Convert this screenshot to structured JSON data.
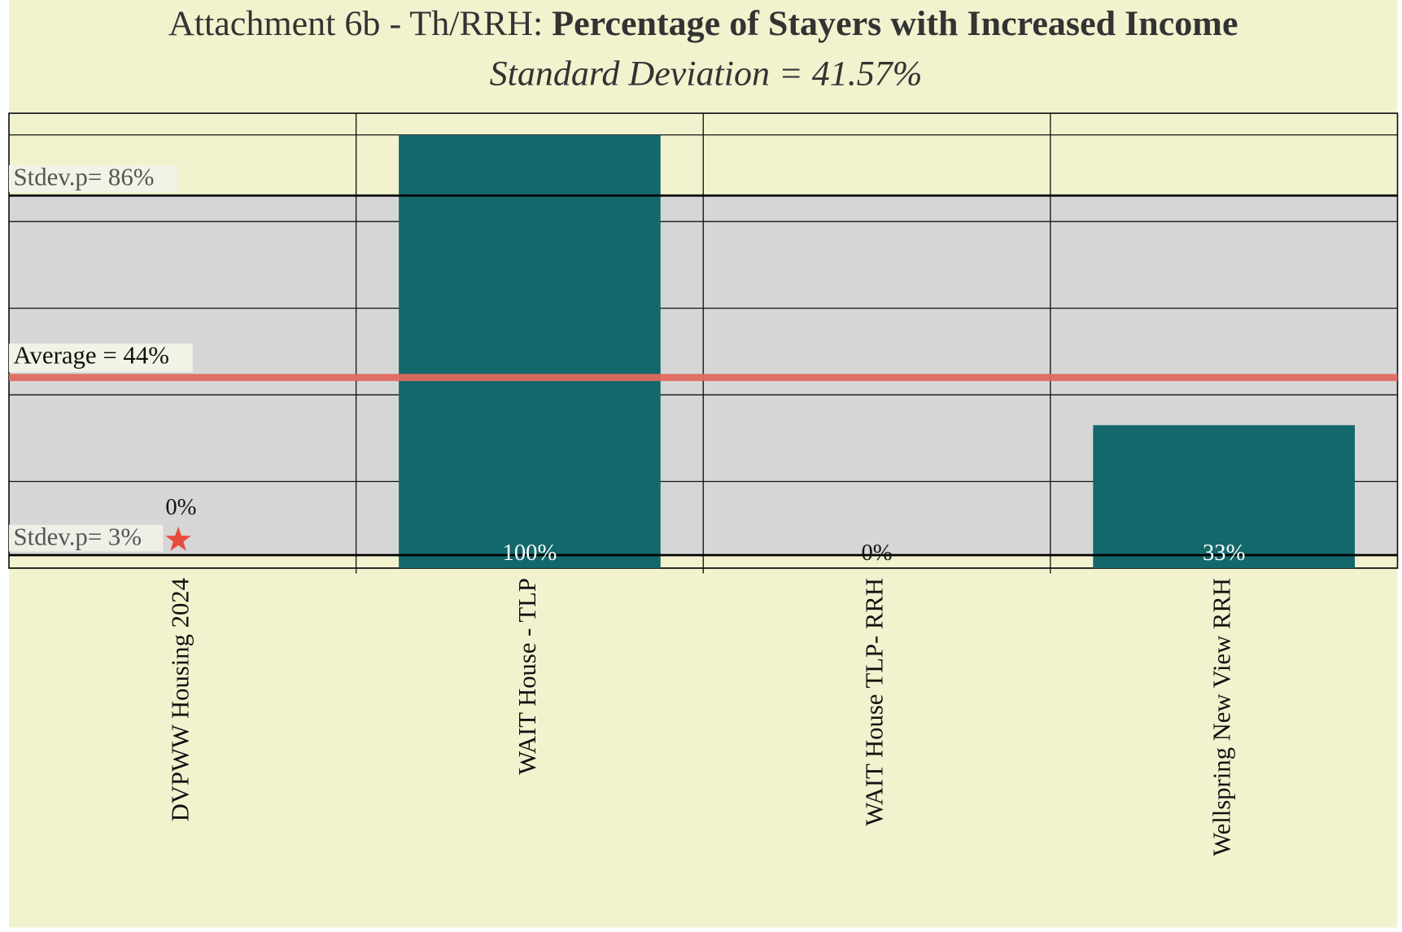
{
  "chart_data": {
    "type": "bar",
    "title_prefix": "Attachment 6b - Th/RRH: ",
    "title": "Percentage of Stayers with Increased Income",
    "subtitle": "Standard Deviation = 41.57%",
    "categories": [
      "DVPWW Housing 2024",
      "WAIT House - TLP",
      "WAIT House TLP- RRH",
      "Wellspring New View RRH"
    ],
    "values": [
      0,
      100,
      0,
      33
    ],
    "value_labels": [
      "0%",
      "100%",
      "0%",
      "33%"
    ],
    "color": "#13686b",
    "ylim": [
      0,
      105
    ],
    "yticks": [
      0,
      20,
      40,
      60,
      80,
      100
    ],
    "grid": true,
    "average": {
      "value": 44,
      "label": "Average = 44%",
      "color": "#e06a5f"
    },
    "stdev_upper": {
      "value": 86,
      "label": "Stdev.p= 86%"
    },
    "stdev_lower": {
      "value": 3,
      "label": "Stdev.p= 3%"
    }
  }
}
